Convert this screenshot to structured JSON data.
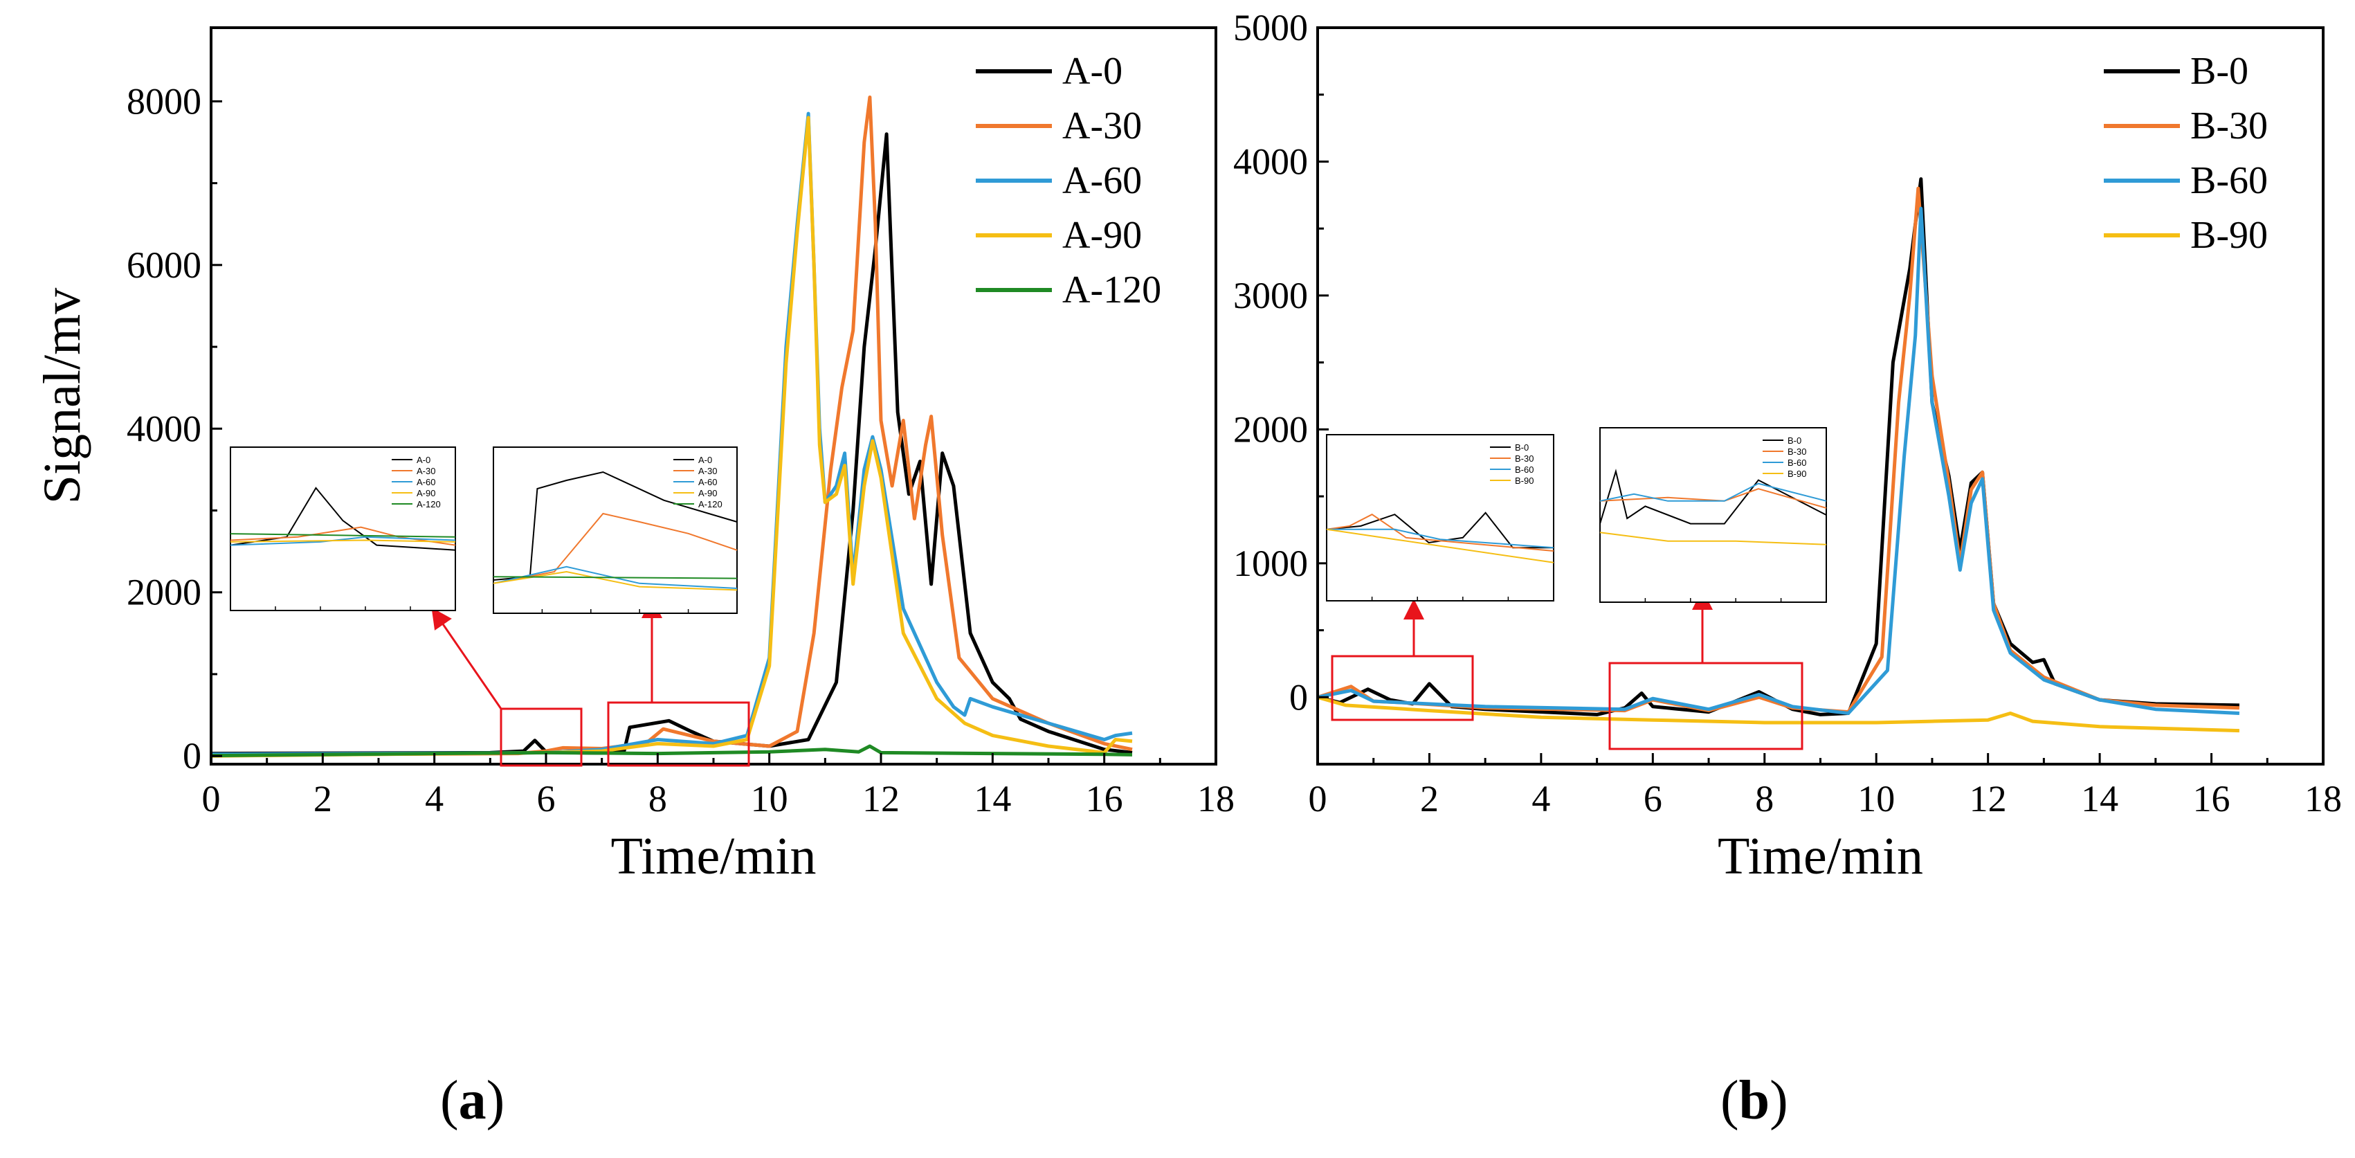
{
  "colors": {
    "black": "#000000",
    "orange": "#F0782D",
    "blue": "#2F9BD6",
    "yellow": "#F5BE14",
    "green": "#1F8A24",
    "red": "#E8141C"
  },
  "panel_labels": {
    "a": "a",
    "b": "b"
  },
  "inset_a1_legend": [
    "A-0",
    "A-30",
    "A-60",
    "A-90",
    "A-120"
  ],
  "inset_a2_legend": [
    "A-0",
    "A-30",
    "A-60",
    "A-90",
    "A-120"
  ],
  "inset_b1_legend": [
    "B-0",
    "B-30",
    "B-60",
    "B-90"
  ],
  "inset_b2_legend": [
    "B-0",
    "B-30",
    "B-60",
    "B-90"
  ],
  "chart_data": [
    {
      "type": "line",
      "title": "",
      "panel": "(a)",
      "xlabel": "Time/min",
      "ylabel": "Signal/mv",
      "xlim": [
        0,
        18
      ],
      "ylim": [
        -100,
        8900
      ],
      "xticks": [
        0,
        2,
        4,
        6,
        8,
        10,
        12,
        14,
        16,
        18
      ],
      "yticks": [
        0,
        2000,
        4000,
        6000,
        8000
      ],
      "legend_position": "top-right",
      "series": [
        {
          "name": "A-0",
          "color": "#000000",
          "x": [
            0,
            5,
            5.6,
            5.8,
            6.0,
            6.4,
            7.0,
            7.4,
            7.5,
            8.2,
            8.6,
            9.0,
            10.0,
            10.7,
            11.2,
            11.5,
            11.7,
            11.9,
            12.1,
            12.3,
            12.5,
            12.7,
            12.9,
            13.1,
            13.3,
            13.6,
            14.0,
            14.3,
            14.5,
            15,
            16,
            16.5
          ],
          "y": [
            30,
            40,
            60,
            190,
            50,
            40,
            35,
            60,
            350,
            430,
            300,
            180,
            120,
            200,
            900,
            3000,
            5000,
            6200,
            7600,
            4200,
            3200,
            3600,
            2100,
            3700,
            3300,
            1500,
            900,
            700,
            450,
            300,
            80,
            40
          ]
        },
        {
          "name": "A-30",
          "color": "#F0782D",
          "x": [
            0,
            5.5,
            6.0,
            6.3,
            7.0,
            7.8,
            8.1,
            9.0,
            10.0,
            10.5,
            10.8,
            11.1,
            11.3,
            11.5,
            11.7,
            11.8,
            11.9,
            12.0,
            12.2,
            12.4,
            12.6,
            12.8,
            12.9,
            13.1,
            13.4,
            14.0,
            15,
            16,
            16.5
          ],
          "y": [
            10,
            30,
            60,
            100,
            90,
            160,
            330,
            180,
            120,
            300,
            1500,
            3500,
            4500,
            5200,
            7500,
            8050,
            6500,
            4100,
            3300,
            4100,
            2900,
            3800,
            4150,
            2700,
            1200,
            700,
            400,
            150,
            80
          ]
        },
        {
          "name": "A-60",
          "color": "#2F9BD6",
          "x": [
            0,
            6.0,
            7.0,
            8.0,
            9.0,
            9.6,
            10.0,
            10.3,
            10.5,
            10.7,
            10.8,
            10.9,
            11.0,
            11.2,
            11.35,
            11.5,
            11.7,
            11.85,
            12.0,
            12.4,
            13.0,
            13.3,
            13.5,
            13.6,
            14.0,
            15.0,
            16.0,
            16.2,
            16.5
          ],
          "y": [
            20,
            40,
            80,
            200,
            150,
            250,
            1200,
            5000,
            6500,
            7850,
            6000,
            4000,
            3100,
            3300,
            3700,
            2200,
            3500,
            3900,
            3500,
            1800,
            900,
            600,
            500,
            700,
            600,
            400,
            200,
            250,
            280
          ]
        },
        {
          "name": "A-90",
          "color": "#F5BE14",
          "x": [
            0,
            6.0,
            7.0,
            8.0,
            9.0,
            9.6,
            10.0,
            10.3,
            10.5,
            10.7,
            10.8,
            10.9,
            11.0,
            11.2,
            11.35,
            11.5,
            11.7,
            11.85,
            12.0,
            12.4,
            13.0,
            13.5,
            14.0,
            15.0,
            16.0,
            16.2,
            16.5
          ],
          "y": [
            0,
            40,
            60,
            150,
            120,
            200,
            1100,
            4800,
            6400,
            7800,
            6000,
            3800,
            3100,
            3200,
            3550,
            2100,
            3300,
            3850,
            3400,
            1500,
            700,
            400,
            250,
            120,
            40,
            200,
            180
          ]
        },
        {
          "name": "A-120",
          "color": "#1F8A24",
          "x": [
            0,
            4,
            6,
            8,
            10,
            11.0,
            11.6,
            11.8,
            12.0,
            14,
            16,
            16.5
          ],
          "y": [
            5,
            30,
            40,
            30,
            50,
            80,
            50,
            120,
            40,
            30,
            20,
            15
          ]
        }
      ]
    },
    {
      "type": "line",
      "title": "",
      "panel": "(b)",
      "xlabel": "Time/min",
      "ylabel": "",
      "xlim": [
        0,
        18
      ],
      "ylim": [
        -500,
        5000
      ],
      "xticks": [
        0,
        2,
        4,
        6,
        8,
        10,
        12,
        14,
        16,
        18
      ],
      "yticks": [
        0,
        1000,
        2000,
        3000,
        4000,
        5000
      ],
      "legend_position": "top-right",
      "series": [
        {
          "name": "B-0",
          "color": "#000000",
          "x": [
            0,
            0.4,
            0.9,
            1.3,
            1.7,
            2.0,
            2.4,
            3.0,
            5.0,
            5.5,
            5.8,
            6.0,
            7.0,
            7.9,
            8.5,
            9.0,
            9.5,
            10.0,
            10.3,
            10.6,
            10.8,
            11.0,
            11.3,
            11.5,
            11.7,
            11.9,
            12.1,
            12.4,
            12.8,
            13.0,
            13.2,
            14,
            15,
            16.5
          ],
          "y": [
            0,
            -40,
            60,
            -20,
            -50,
            100,
            -70,
            -90,
            -130,
            -80,
            30,
            -70,
            -110,
            40,
            -90,
            -130,
            -120,
            400,
            2500,
            3200,
            3870,
            2200,
            1650,
            1100,
            1600,
            1680,
            700,
            400,
            260,
            280,
            100,
            -20,
            -50,
            -60
          ]
        },
        {
          "name": "B-30",
          "color": "#F0782D",
          "x": [
            0,
            0.6,
            1.0,
            1.5,
            3.0,
            5.5,
            6.0,
            7.0,
            7.9,
            8.5,
            9.5,
            10.1,
            10.4,
            10.6,
            10.75,
            11.0,
            11.3,
            11.5,
            11.7,
            11.9,
            12.1,
            12.4,
            13.0,
            14,
            15,
            16.5
          ],
          "y": [
            0,
            80,
            -30,
            -40,
            -80,
            -100,
            -20,
            -100,
            0,
            -80,
            -110,
            300,
            2200,
            3000,
            3800,
            2400,
            1600,
            1000,
            1550,
            1680,
            700,
            350,
            150,
            -20,
            -60,
            -80
          ]
        },
        {
          "name": "B-60",
          "color": "#2F9BD6",
          "x": [
            0,
            0.6,
            1.0,
            1.5,
            3.0,
            5.5,
            6.0,
            7.0,
            7.9,
            8.5,
            9.5,
            10.2,
            10.5,
            10.7,
            10.8,
            11.0,
            11.3,
            11.5,
            11.7,
            11.9,
            12.1,
            12.4,
            13.0,
            14,
            15,
            16.5
          ],
          "y": [
            0,
            50,
            -30,
            -40,
            -70,
            -90,
            -10,
            -90,
            20,
            -70,
            -120,
            200,
            1800,
            2700,
            3650,
            2200,
            1500,
            950,
            1450,
            1630,
            650,
            330,
            130,
            -20,
            -90,
            -120
          ]
        },
        {
          "name": "B-90",
          "color": "#F5BE14",
          "x": [
            0,
            0.5,
            2,
            4,
            6,
            8,
            10,
            11,
            12.0,
            12.4,
            12.8,
            14,
            16.5
          ],
          "y": [
            0,
            -60,
            -100,
            -150,
            -170,
            -190,
            -190,
            -180,
            -170,
            -120,
            -180,
            -220,
            -250
          ]
        }
      ]
    }
  ]
}
